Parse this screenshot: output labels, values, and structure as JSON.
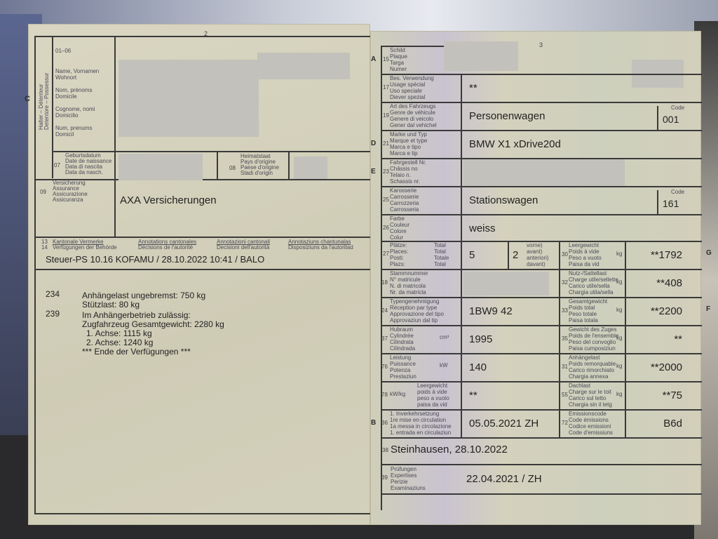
{
  "left_page": {
    "page_number": "2",
    "section_letter": "C",
    "holder_side_label": [
      "Halter – Détenteur",
      "Detentore – Possessur"
    ],
    "field_01_06": {
      "code": "01–06",
      "labels": [
        "Name, Vornamen",
        "Wohnort",
        "Nom, prénoms",
        "Domicile",
        "Cognome, nomi",
        "Domicilio",
        "Num, prenums",
        "Domicil"
      ]
    },
    "field_07": {
      "code": "07",
      "labels": [
        "Geburtsdatum",
        "Date de naissance",
        "Data di nascita",
        "Data da nasch."
      ]
    },
    "field_08": {
      "code": "08",
      "labels": [
        "Heimatstaat",
        "Pays d'origine",
        "Paese d'origine",
        "Stadi d'origin"
      ]
    },
    "field_09": {
      "code": "09",
      "labels": [
        "Versicherung",
        "Assurance",
        "Assicurazione",
        "Assicuranza"
      ],
      "value": "AXA Versicherungen"
    },
    "field_13_14": {
      "codes": [
        "13",
        "14"
      ],
      "headers": [
        [
          "Kantonale Vermerke",
          "Verfügungen der Behörde"
        ],
        [
          "Annotations cantonales",
          "Décisions de l'autorité"
        ],
        [
          "Annotazioni cantonali",
          "Decisioni dell'autorità"
        ],
        [
          "Annotaziuns chantunalas",
          "Disposiziuns da l'autoritad"
        ]
      ],
      "steuer_line": "Steuer-PS  10.16  KOFAMU / 28.10.2022 10:41 / BALO"
    },
    "remarks": [
      {
        "code": "234",
        "lines": [
          "Anhängelast ungebremst: 750 kg",
          "Stützlast: 80 kg"
        ]
      },
      {
        "code": "239",
        "lines": [
          "Im Anhängerbetrieb zulässig:",
          "Zugfahrzeug Gesamtgewicht:  2280 kg",
          "1. Achse:  1115 kg",
          "2. Achse:  1240 kg",
          "*** Ende der Verfügungen ***"
        ]
      }
    ]
  },
  "right_page": {
    "page_number": "3",
    "rows": [
      {
        "letter": "A",
        "code": "15",
        "labels": [
          "Schild",
          "Plaque",
          "Targa",
          "Numer"
        ],
        "value": ""
      },
      {
        "code": "17",
        "labels": [
          "Bes. Verwendung",
          "Usage spécial",
          "Uso speciale",
          "Diever spezial"
        ],
        "value": "**"
      },
      {
        "code": "19",
        "labels": [
          "Art des Fahrzeugs",
          "Genre de véhicule",
          "Genere di veicolo",
          "Gener dal vehichel"
        ],
        "value": "Personenwagen",
        "code_label": "Code",
        "code_value": "001"
      },
      {
        "letter": "D",
        "code": "21",
        "labels": [
          "Marke und Typ",
          "Marque et type",
          "Marca e tipo",
          "Marca e tip"
        ],
        "value": "BMW X1 xDrive20d"
      },
      {
        "letter": "E",
        "code": "23",
        "labels": [
          "Fahrgestell Nr.",
          "Châssis no",
          "Telaio n.",
          "Schassis nr."
        ],
        "value": ""
      },
      {
        "code": "25",
        "labels": [
          "Karosserie",
          "Carrosserie",
          "Carrozzeria",
          "Carrosseria"
        ],
        "value": "Stationswagen",
        "code_label": "Code",
        "code_value": "161"
      },
      {
        "code": "26",
        "labels": [
          "Farbe",
          "Couleur",
          "Colore",
          "Colur"
        ],
        "value": "weiss"
      }
    ],
    "seats": {
      "code": "27",
      "labels": [
        "Plätze:",
        "Places:",
        "Posti:",
        "Plazs:"
      ],
      "total_labels": [
        "Total",
        "Total",
        "Totale",
        "Total"
      ],
      "total": "5",
      "front": "2",
      "front_labels": [
        "vorne)",
        "avant)",
        "anteriori)",
        "davant)"
      ]
    },
    "left_rows": [
      {
        "code": "18",
        "labels": [
          "Stammnummer",
          "N° matricule",
          "N. di matricola",
          "Nr. da matricla"
        ],
        "value": "",
        "unit": ""
      },
      {
        "code": "24",
        "labels": [
          "Typengenehmigung",
          "Réception par type",
          "Approvazione del tipo",
          "Approvaziun dal tip"
        ],
        "value": "1BW9 42",
        "unit": ""
      },
      {
        "code": "37",
        "labels": [
          "Hubraum",
          "Cylindrée",
          "Cilindrata",
          "Cilindrada"
        ],
        "value": "1995",
        "unit": "cm³"
      },
      {
        "code": "76",
        "labels": [
          "Leistung",
          "Puissance",
          "Potenza",
          "Prestaziun"
        ],
        "value": "140",
        "unit": "kW"
      },
      {
        "code": "78",
        "labels": [
          "kW/kg",
          "Leergewicht",
          "poids à vide",
          "peso a vuoto",
          "paisa da vid"
        ],
        "value": "**",
        "unit": ""
      },
      {
        "letter": "B",
        "code": "36",
        "labels": [
          "1. Inverkehrsetzung",
          "1re mise en circulation",
          "1a messa in circolazione",
          "1. entrada en circulaziun"
        ],
        "value": "05.05.2021 ZH",
        "unit": ""
      }
    ],
    "right_rows": [
      {
        "code": "30",
        "labels": [
          "Leergewicht",
          "Poids à vide",
          "Peso a vuoto",
          "Paisa da vid"
        ],
        "unit": "kg",
        "value": "**1792",
        "letter": "G"
      },
      {
        "code": "32",
        "labels": [
          "Nutz-/Sattellast",
          "Charge utile/sellette",
          "Carico utile/sella",
          "Chargia utila/sella"
        ],
        "unit": "kg",
        "value": "**408"
      },
      {
        "code": "33",
        "labels": [
          "Gesamtgewicht",
          "Poids total",
          "Peso totale",
          "Paisa totala"
        ],
        "unit": "kg",
        "value": "**2200",
        "letter": "F"
      },
      {
        "code": "35",
        "labels": [
          "Gewicht des Zuges",
          "Poids de l'ensemble",
          "Peso del convoglio",
          "Paisa cumposiziun"
        ],
        "unit": "kg",
        "value": "**"
      },
      {
        "code": "31",
        "labels": [
          "Anhängelast",
          "Poids remorquable",
          "Carico rimorchiato",
          "Chargia annexa"
        ],
        "unit": "kg",
        "value": "**2000"
      },
      {
        "code": "55",
        "labels": [
          "Dachlast",
          "Charge sur le toit",
          "Carico sul tetto",
          "Chargia sin il tetg"
        ],
        "unit": "kg",
        "value": "**75"
      },
      {
        "code": "72",
        "labels": [
          "Emissionscode",
          "Code émissions",
          "Codice emissioni",
          "Code d'emissiuns"
        ],
        "unit": "",
        "value": "B6d"
      }
    ],
    "field_38": {
      "code": "38",
      "value": "Steinhausen, 28.10.2022"
    },
    "field_39": {
      "code": "39",
      "labels": [
        "Prüfungen",
        "Expertises",
        "Perizie",
        "Examinaziuns"
      ],
      "value": "22.04.2021 / ZH"
    }
  }
}
